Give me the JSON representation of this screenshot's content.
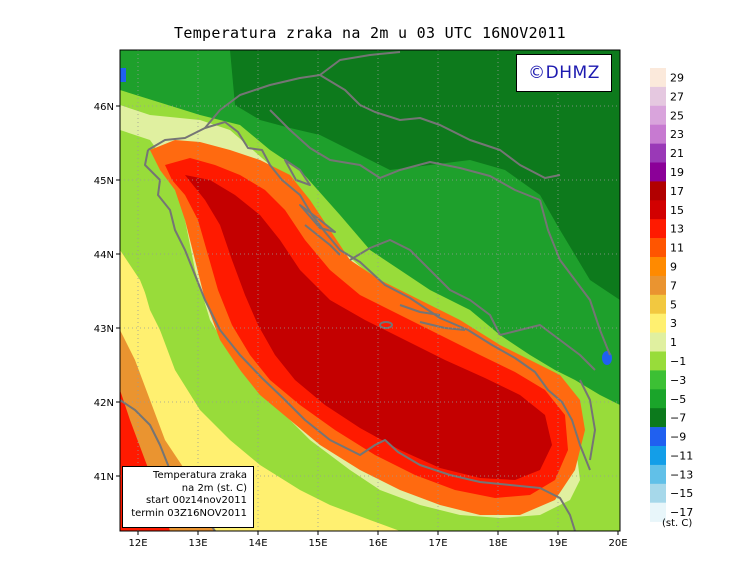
{
  "title": "Temperatura zraka na 2m u 03 UTC 16NOV2011",
  "logo": "©DHMZ",
  "info_box": {
    "line1": "Temperatura zraka",
    "line2": "na 2m (st. C)",
    "line3": "start 00z14nov2011",
    "line4": "termin 03Z16NOV2011"
  },
  "colorbar": {
    "unit": "(st. C)",
    "levels": [
      "29",
      "27",
      "25",
      "23",
      "21",
      "19",
      "17",
      "15",
      "13",
      "11",
      "9",
      "7",
      "5",
      "3",
      "1",
      "−1",
      "−3",
      "−5",
      "−7",
      "−9",
      "−11",
      "−13",
      "−15",
      "−17"
    ],
    "colors": [
      "#fbe9db",
      "#e5c8e0",
      "#d9a4dc",
      "#c77ad1",
      "#9a39b7",
      "#8b0098",
      "#b10000",
      "#d20000",
      "#ff1a00",
      "#ff5500",
      "#ff8a00",
      "#ea9430",
      "#f2c840",
      "#fff070",
      "#e0f0a0",
      "#98dc3a",
      "#3cc034",
      "#1aa52a",
      "#0c7a1c",
      "#2060f0",
      "#139ee8",
      "#61c0e8",
      "#a6d8ea",
      "#e8f6fa"
    ]
  },
  "axes": {
    "lat_labels": [
      "46N",
      "45N",
      "44N",
      "43N",
      "42N",
      "41N"
    ],
    "lon_labels": [
      "12E",
      "13E",
      "14E",
      "15E",
      "16E",
      "17E",
      "18E",
      "19E",
      "20E"
    ]
  },
  "colors": {
    "sea_warm": "#c40000",
    "sea_hot": "#ff1a00",
    "coast_orange": "#ff6a10",
    "land_green": "#1ea02c",
    "land_dark": "#0d7a1c",
    "border_gray": "#757575"
  }
}
